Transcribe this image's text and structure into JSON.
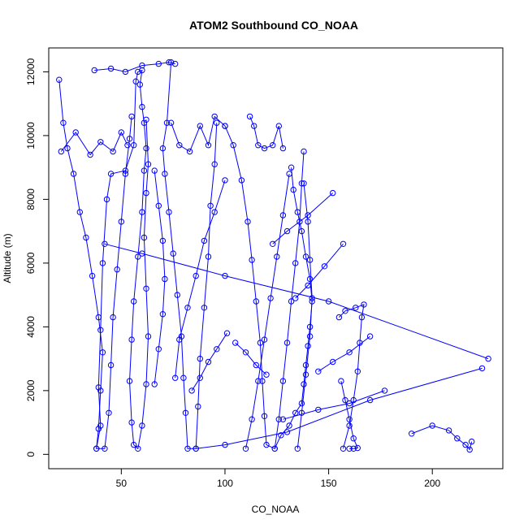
{
  "chart_data": {
    "type": "scatter",
    "title": "ATOM2 Southbound CO_NOAA",
    "xlabel": "CO_NOAA",
    "ylabel": "Altitude (m)",
    "xlim": [
      15,
      234
    ],
    "ylim": [
      -450,
      12750
    ],
    "x_ticks": [
      50,
      100,
      150,
      200
    ],
    "y_ticks": [
      0,
      2000,
      4000,
      6000,
      8000,
      10000,
      12000
    ],
    "grid": false,
    "legend": "none",
    "marker": "open-circle",
    "connected": true,
    "color": "#0000ff",
    "series": [
      {
        "points": [
          [
            38,
            180
          ],
          [
            40,
            900
          ],
          [
            39,
            2100
          ],
          [
            40,
            3900
          ],
          [
            41,
            6000
          ],
          [
            43,
            8000
          ],
          [
            45,
            8800
          ],
          [
            52,
            8900
          ],
          [
            56,
            9700
          ],
          [
            57,
            11700
          ],
          [
            58,
            12000
          ],
          [
            60,
            12050
          ],
          [
            59,
            11600
          ],
          [
            60,
            10900
          ],
          [
            61,
            10400
          ],
          [
            62,
            9600
          ],
          [
            61,
            8900
          ],
          [
            60,
            7600
          ],
          [
            58,
            6200
          ],
          [
            56,
            4800
          ],
          [
            55,
            3600
          ],
          [
            54,
            2300
          ],
          [
            55,
            1000
          ],
          [
            56,
            300
          ],
          [
            58,
            180
          ],
          [
            60,
            900
          ],
          [
            62,
            2200
          ],
          [
            63,
            3700
          ],
          [
            62,
            5200
          ],
          [
            61,
            6800
          ],
          [
            62,
            8200
          ],
          [
            63,
            9100
          ],
          [
            62,
            10500
          ]
        ]
      },
      {
        "points": [
          [
            20,
            11750
          ],
          [
            22,
            10400
          ],
          [
            24,
            9600
          ],
          [
            27,
            8800
          ],
          [
            30,
            7600
          ],
          [
            33,
            6800
          ],
          [
            36,
            5600
          ],
          [
            39,
            4300
          ],
          [
            41,
            3200
          ],
          [
            40,
            2000
          ],
          [
            39,
            800
          ],
          [
            38,
            180
          ],
          [
            42,
            180
          ],
          [
            44,
            1300
          ],
          [
            45,
            2800
          ],
          [
            46,
            4300
          ],
          [
            48,
            5800
          ],
          [
            50,
            7300
          ],
          [
            52,
            8800
          ],
          [
            54,
            9900
          ],
          [
            55,
            10600
          ]
        ]
      },
      {
        "points": [
          [
            21,
            9500
          ],
          [
            28,
            10100
          ],
          [
            35,
            9400
          ],
          [
            40,
            9800
          ],
          [
            46,
            9500
          ],
          [
            50,
            10100
          ],
          [
            53,
            9700
          ]
        ]
      },
      {
        "points": [
          [
            37,
            12050
          ],
          [
            45,
            12100
          ],
          [
            52,
            12000
          ],
          [
            60,
            12200
          ],
          [
            68,
            12250
          ],
          [
            73,
            12300
          ],
          [
            76,
            12250
          ]
        ]
      },
      {
        "points": [
          [
            74,
            12300
          ],
          [
            72,
            10400
          ],
          [
            70,
            9600
          ],
          [
            71,
            8800
          ],
          [
            73,
            7600
          ],
          [
            75,
            6300
          ],
          [
            77,
            5000
          ],
          [
            79,
            3700
          ],
          [
            80,
            2400
          ],
          [
            81,
            1300
          ],
          [
            82,
            180
          ],
          [
            86,
            180
          ],
          [
            87,
            1500
          ],
          [
            88,
            3000
          ],
          [
            90,
            4600
          ],
          [
            92,
            6200
          ],
          [
            93,
            7800
          ],
          [
            95,
            9100
          ],
          [
            96,
            10400
          ]
        ]
      },
      {
        "points": [
          [
            74,
            10400
          ],
          [
            78,
            9700
          ],
          [
            83,
            9500
          ],
          [
            88,
            10300
          ],
          [
            92,
            9700
          ],
          [
            95,
            10600
          ],
          [
            100,
            10300
          ]
        ]
      },
      {
        "points": [
          [
            100,
            10300
          ],
          [
            104,
            9700
          ],
          [
            108,
            8600
          ],
          [
            111,
            7300
          ],
          [
            113,
            6100
          ],
          [
            115,
            4800
          ],
          [
            117,
            3500
          ],
          [
            118,
            2300
          ],
          [
            119,
            1200
          ],
          [
            120,
            300
          ],
          [
            124,
            180
          ],
          [
            126,
            1100
          ],
          [
            128,
            2300
          ],
          [
            130,
            3500
          ],
          [
            132,
            4800
          ],
          [
            134,
            6000
          ],
          [
            136,
            7300
          ],
          [
            137,
            8500
          ],
          [
            138,
            9500
          ]
        ]
      },
      {
        "points": [
          [
            112,
            10600
          ],
          [
            114,
            10300
          ],
          [
            116,
            9700
          ],
          [
            119,
            9600
          ],
          [
            123,
            9700
          ],
          [
            126,
            10300
          ],
          [
            128,
            9600
          ]
        ]
      },
      {
        "points": [
          [
            124,
            180
          ],
          [
            127,
            600
          ],
          [
            131,
            900
          ],
          [
            134,
            1300
          ],
          [
            137,
            1600
          ],
          [
            138,
            2200
          ],
          [
            139,
            2800
          ],
          [
            140,
            3400
          ],
          [
            141,
            4000
          ],
          [
            142,
            4800
          ],
          [
            141,
            5500
          ],
          [
            139,
            6200
          ],
          [
            137,
            7000
          ],
          [
            135,
            7600
          ],
          [
            133,
            8300
          ],
          [
            132,
            9000
          ]
        ]
      },
      {
        "points": [
          [
            110,
            180
          ],
          [
            113,
            1100
          ],
          [
            116,
            2300
          ],
          [
            119,
            3600
          ],
          [
            122,
            4900
          ],
          [
            125,
            6200
          ],
          [
            128,
            7500
          ],
          [
            131,
            8800
          ]
        ]
      },
      {
        "points": [
          [
            135,
            180
          ],
          [
            137,
            1300
          ],
          [
            139,
            2500
          ],
          [
            141,
            3700
          ],
          [
            142,
            4900
          ],
          [
            141,
            6100
          ],
          [
            140,
            7300
          ],
          [
            138,
            8500
          ]
        ]
      },
      {
        "points": [
          [
            157,
            180
          ],
          [
            160,
            900
          ],
          [
            162,
            1700
          ],
          [
            164,
            2600
          ],
          [
            165,
            3500
          ],
          [
            166,
            4300
          ],
          [
            167,
            4700
          ],
          [
            163,
            4600
          ],
          [
            158,
            4500
          ],
          [
            155,
            4300
          ]
        ]
      },
      {
        "points": [
          [
            160,
            180
          ],
          [
            162,
            180
          ],
          [
            164,
            200
          ],
          [
            162,
            500
          ],
          [
            160,
            1100
          ],
          [
            158,
            1700
          ],
          [
            156,
            2300
          ]
        ]
      },
      {
        "points": [
          [
            190,
            650
          ],
          [
            200,
            900
          ],
          [
            208,
            750
          ],
          [
            212,
            500
          ],
          [
            216,
            300
          ],
          [
            218,
            150
          ],
          [
            219,
            400
          ]
        ]
      },
      {
        "points": [
          [
            227,
            3000
          ],
          [
            150,
            4800
          ],
          [
            100,
            5600
          ],
          [
            60,
            6300
          ],
          [
            42,
            6600
          ]
        ]
      },
      {
        "points": [
          [
            224,
            2700
          ],
          [
            170,
            1700
          ],
          [
            130,
            700
          ],
          [
            100,
            300
          ],
          [
            86,
            180
          ]
        ]
      },
      {
        "points": [
          [
            177,
            2000
          ],
          [
            160,
            1600
          ],
          [
            145,
            1400
          ],
          [
            128,
            1100
          ]
        ]
      },
      {
        "points": [
          [
            152,
            8200
          ],
          [
            140,
            7500
          ],
          [
            130,
            7000
          ],
          [
            123,
            6600
          ]
        ]
      },
      {
        "points": [
          [
            170,
            3700
          ],
          [
            160,
            3200
          ],
          [
            152,
            2900
          ],
          [
            145,
            2600
          ]
        ]
      },
      {
        "points": [
          [
            157,
            6600
          ],
          [
            148,
            5900
          ],
          [
            140,
            5300
          ],
          [
            134,
            4900
          ]
        ]
      },
      {
        "points": [
          [
            100,
            8600
          ],
          [
            95,
            7600
          ],
          [
            90,
            6700
          ],
          [
            86,
            5600
          ],
          [
            82,
            4600
          ],
          [
            78,
            3600
          ],
          [
            76,
            2400
          ]
        ]
      },
      {
        "points": [
          [
            66,
            8900
          ],
          [
            68,
            7800
          ],
          [
            70,
            6700
          ],
          [
            71,
            5500
          ],
          [
            70,
            4400
          ],
          [
            68,
            3300
          ],
          [
            66,
            2200
          ]
        ]
      },
      {
        "points": [
          [
            101,
            3800
          ],
          [
            96,
            3300
          ],
          [
            92,
            2900
          ],
          [
            88,
            2400
          ],
          [
            84,
            2000
          ]
        ]
      },
      {
        "points": [
          [
            120,
            2500
          ],
          [
            115,
            2800
          ],
          [
            110,
            3200
          ],
          [
            105,
            3500
          ]
        ]
      }
    ]
  }
}
